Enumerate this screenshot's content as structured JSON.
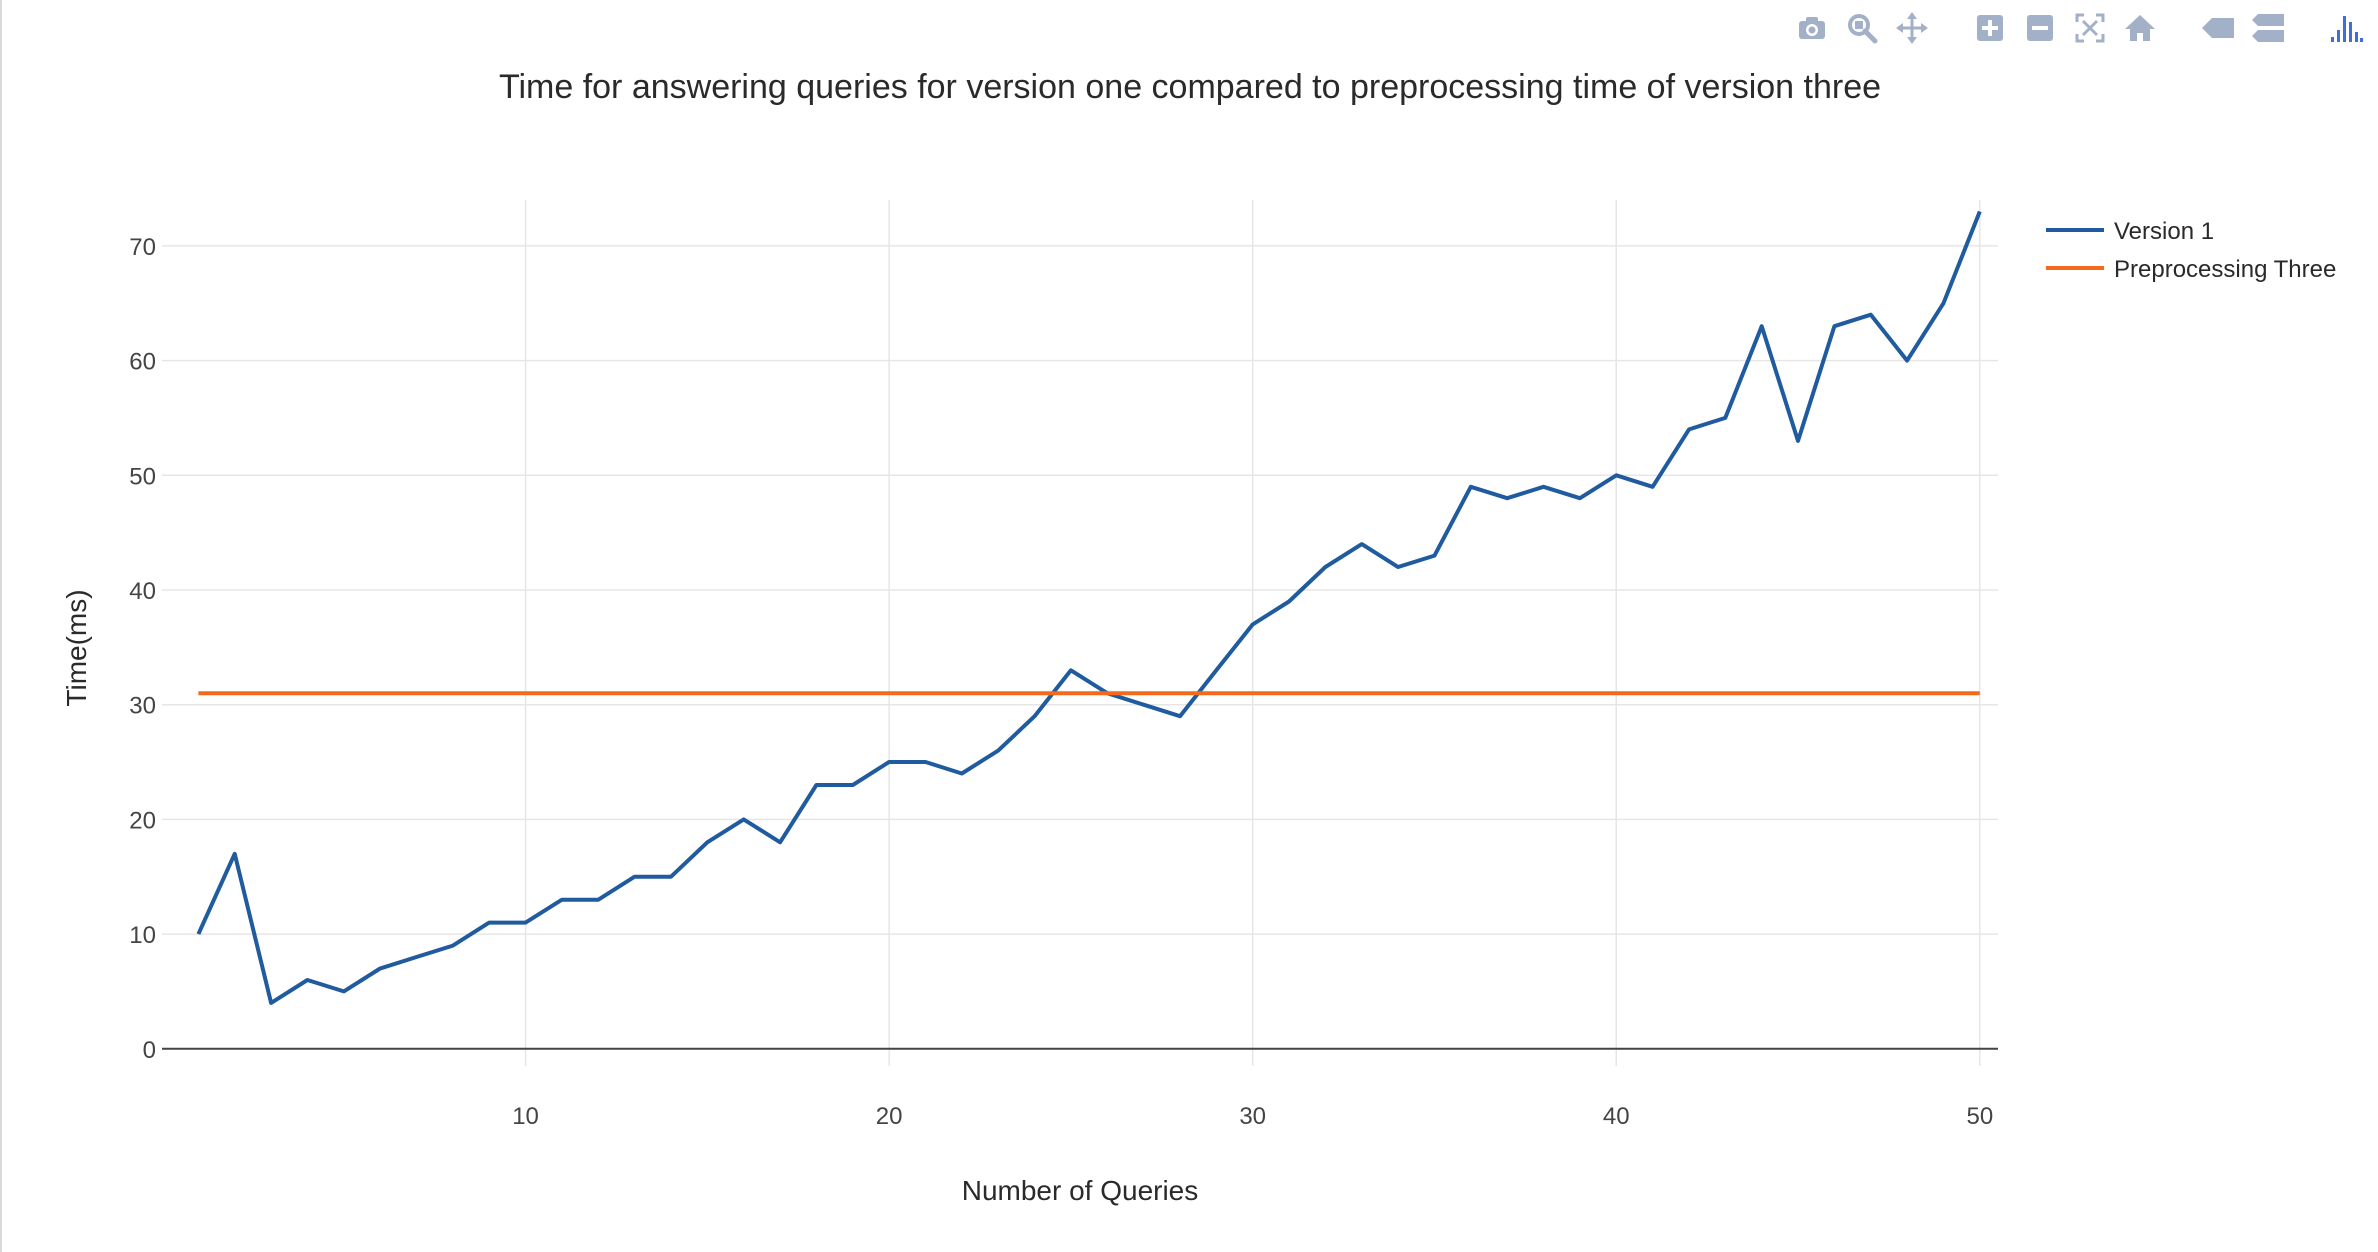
{
  "toolbar": {
    "buttons": [
      {
        "name": "camera-icon",
        "title": "Download plot as a png"
      },
      {
        "name": "zoom-icon",
        "title": "Zoom"
      },
      {
        "name": "pan-icon",
        "title": "Pan"
      },
      {
        "name": "zoom-in-icon",
        "title": "Zoom in"
      },
      {
        "name": "zoom-out-icon",
        "title": "Zoom out"
      },
      {
        "name": "autoscale-icon",
        "title": "Autoscale"
      },
      {
        "name": "home-icon",
        "title": "Reset axes"
      },
      {
        "name": "spike-lines-icon",
        "title": "Toggle Spike Lines"
      },
      {
        "name": "compare-hover-icon",
        "title": "Compare data on hover"
      },
      {
        "name": "plotly-logo-icon",
        "title": "Produced with Plotly"
      }
    ],
    "icon_color": "#a3b1c8",
    "logo_color": "#3f6fd8"
  },
  "chart_data": {
    "type": "line",
    "title": "Time for answering queries for version one compared to preprocessing time of version three",
    "xlabel": "Number of Queries",
    "ylabel": "Time(ms)",
    "xlim": [
      0,
      50.5
    ],
    "ylim": [
      -1.5,
      74
    ],
    "x_ticks": [
      10,
      20,
      30,
      40,
      50
    ],
    "y_ticks": [
      0,
      10,
      20,
      30,
      40,
      50,
      60,
      70
    ],
    "grid": true,
    "legend_position": "top-right",
    "series": [
      {
        "name": "Version 1",
        "color": "#1f5b9e",
        "x": [
          1,
          2,
          3,
          4,
          5,
          6,
          7,
          8,
          9,
          10,
          11,
          12,
          13,
          14,
          15,
          16,
          17,
          18,
          19,
          20,
          21,
          22,
          23,
          24,
          25,
          26,
          27,
          28,
          29,
          30,
          31,
          32,
          33,
          34,
          35,
          36,
          37,
          38,
          39,
          40,
          41,
          42,
          43,
          44,
          45,
          46,
          47,
          48,
          49,
          50
        ],
        "y": [
          10,
          17,
          4,
          6,
          5,
          7,
          8,
          9,
          11,
          11,
          13,
          13,
          15,
          15,
          18,
          20,
          18,
          23,
          23,
          25,
          25,
          24,
          26,
          29,
          33,
          31,
          30,
          29,
          33,
          37,
          39,
          42,
          44,
          42,
          43,
          49,
          48,
          49,
          48,
          50,
          49,
          54,
          55,
          63,
          53,
          63,
          64,
          60,
          65,
          73
        ]
      },
      {
        "name": "Preprocessing Three",
        "color": "#f36a1d",
        "x": [
          1,
          50
        ],
        "y": [
          31,
          31
        ]
      }
    ]
  }
}
